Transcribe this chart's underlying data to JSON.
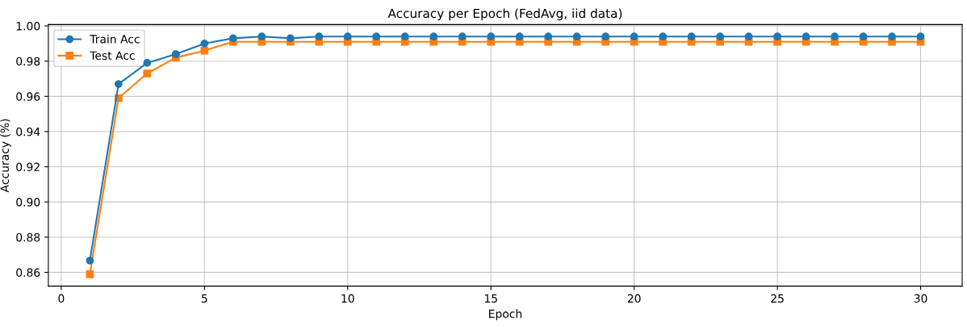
{
  "chart_data": {
    "type": "line",
    "title": "Accuracy per Epoch (FedAvg, iid data)",
    "xlabel": "Epoch",
    "ylabel": "Accuracy (%)",
    "x": [
      1,
      2,
      3,
      4,
      5,
      6,
      7,
      8,
      9,
      10,
      11,
      12,
      13,
      14,
      15,
      16,
      17,
      18,
      19,
      20,
      21,
      22,
      23,
      24,
      25,
      26,
      27,
      28,
      29,
      30
    ],
    "series": [
      {
        "name": "Train Acc",
        "color": "#1f77b4",
        "marker": "circle",
        "values": [
          0.8667,
          0.967,
          0.979,
          0.984,
          0.99,
          0.993,
          0.994,
          0.993,
          0.994,
          0.994,
          0.994,
          0.994,
          0.994,
          0.994,
          0.994,
          0.994,
          0.994,
          0.994,
          0.994,
          0.994,
          0.994,
          0.994,
          0.994,
          0.994,
          0.994,
          0.994,
          0.994,
          0.994,
          0.994,
          0.994
        ]
      },
      {
        "name": "Test Acc",
        "color": "#ff7f0e",
        "marker": "square",
        "values": [
          0.859,
          0.959,
          0.973,
          0.982,
          0.986,
          0.991,
          0.991,
          0.991,
          0.991,
          0.991,
          0.991,
          0.991,
          0.991,
          0.991,
          0.991,
          0.991,
          0.991,
          0.991,
          0.991,
          0.991,
          0.991,
          0.991,
          0.991,
          0.991,
          0.991,
          0.991,
          0.991,
          0.991,
          0.991,
          0.991
        ]
      }
    ],
    "xlim": [
      -0.45,
      31.45
    ],
    "xticks": [
      0,
      5,
      10,
      15,
      20,
      25,
      30
    ],
    "ylim": [
      0.8522,
      1.0008
    ],
    "yticks": [
      {
        "value": 0.86,
        "label": "0.86"
      },
      {
        "value": 0.88,
        "label": "0.88"
      },
      {
        "value": 0.9,
        "label": "0.90"
      },
      {
        "value": 0.92,
        "label": "0.92"
      },
      {
        "value": 0.94,
        "label": "0.94"
      },
      {
        "value": 0.96,
        "label": "0.96"
      },
      {
        "value": 0.98,
        "label": "0.98"
      },
      {
        "value": 1.0,
        "label": "1.00"
      }
    ],
    "grid": true,
    "legend": "top left",
    "line_style": "solid"
  }
}
